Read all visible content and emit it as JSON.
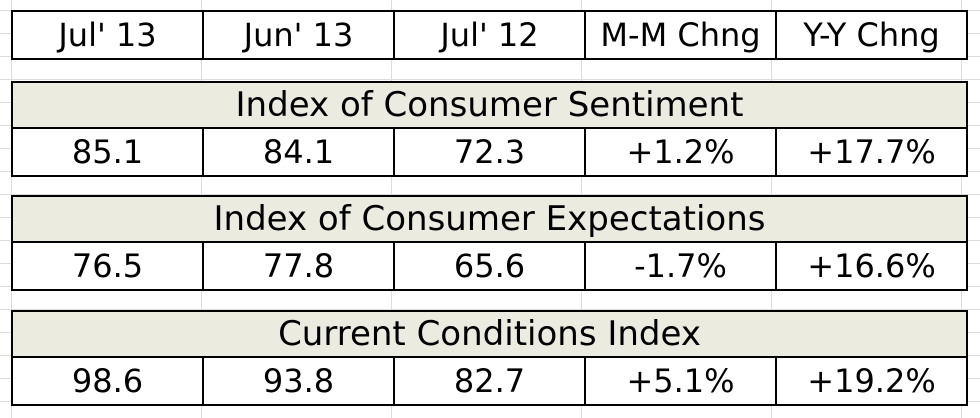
{
  "headers": [
    "Jul' 13",
    "Jun' 13",
    "Jul' 12",
    "M-M Chng",
    "Y-Y Chng"
  ],
  "sections": [
    {
      "title": "Index of Consumer Sentiment",
      "values": [
        "85.1",
        "84.1",
        "72.3",
        "+1.2%",
        "+17.7%"
      ]
    },
    {
      "title": "Index of Consumer Expectations",
      "values": [
        "76.5",
        "77.8",
        "65.6",
        "-1.7%",
        "+16.6%"
      ]
    },
    {
      "title": "Current Conditions Index",
      "values": [
        "98.6",
        "93.8",
        "82.7",
        "+5.1%",
        "+19.2%"
      ]
    }
  ],
  "colors": {
    "title_background": "#ecebe0",
    "border": "#000000",
    "gridline": "#dcdcdc"
  }
}
